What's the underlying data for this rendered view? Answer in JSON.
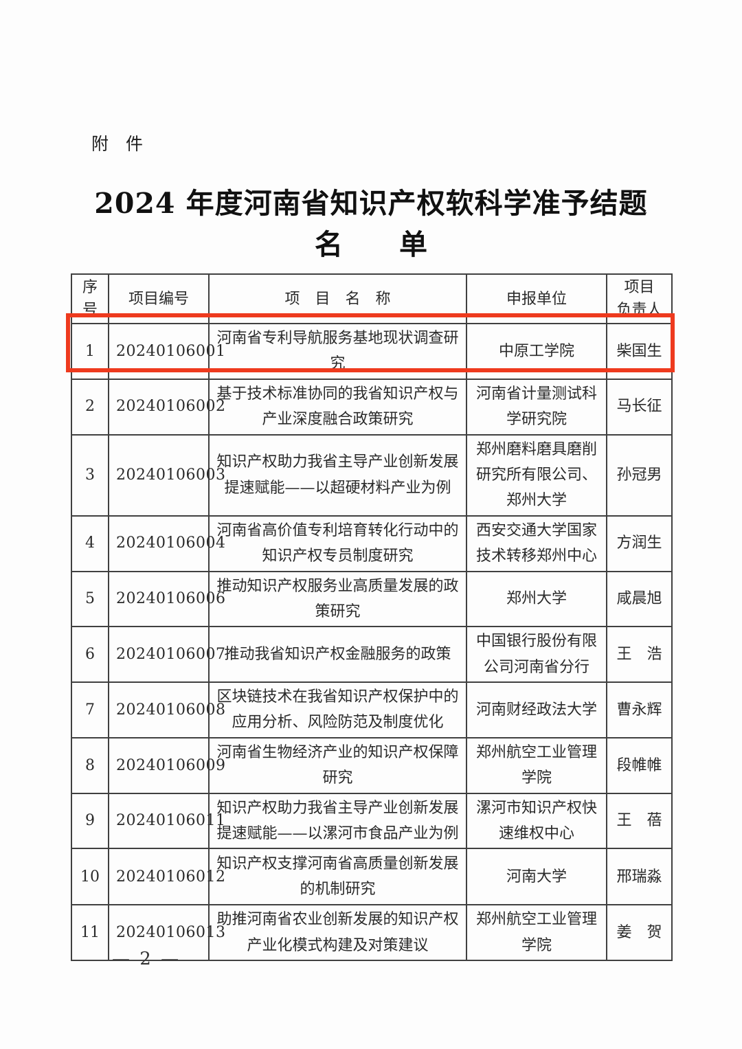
{
  "document": {
    "attachment_label": "附　件",
    "title_line1": "2024 年度河南省知识产权软科学准予结题",
    "title_line2": "名　　单",
    "page_number": "— 2 —",
    "highlight_color": "#ee3a1e"
  },
  "table": {
    "headers": {
      "no": "序\n号",
      "code": "项目编号",
      "name": "项　目　名　称",
      "org": "申报单位",
      "leader": "项目\n负责人"
    },
    "rows": [
      {
        "no": "1",
        "code": "20240106001",
        "name": "河南省专利导航服务基地现状调查研究",
        "org": "中原工学院",
        "leader": "柴国生",
        "highlighted": true
      },
      {
        "no": "2",
        "code": "20240106002",
        "name": "基于技术标准协同的我省知识产权与产业深度融合政策研究",
        "org": "河南省计量测试科学研究院",
        "leader": "马长征",
        "highlighted": false
      },
      {
        "no": "3",
        "code": "20240106003",
        "name": "知识产权助力我省主导产业创新发展提速赋能——以超硬材料产业为例",
        "org": "郑州磨料磨具磨削研究所有限公司、郑州大学",
        "leader": "孙冠男",
        "highlighted": false
      },
      {
        "no": "4",
        "code": "20240106004",
        "name": "河南省高价值专利培育转化行动中的知识产权专员制度研究",
        "org": "西安交通大学国家技术转移郑州中心",
        "leader": "方润生",
        "highlighted": false
      },
      {
        "no": "5",
        "code": "20240106006",
        "name": "推动知识产权服务业高质量发展的政策研究",
        "org": "郑州大学",
        "leader": "咸晨旭",
        "highlighted": false
      },
      {
        "no": "6",
        "code": "20240106007",
        "name": "推动我省知识产权金融服务的政策",
        "org": "中国银行股份有限公司河南省分行",
        "leader": "王　浩",
        "highlighted": false
      },
      {
        "no": "7",
        "code": "20240106008",
        "name": "区块链技术在我省知识产权保护中的应用分析、风险防范及制度优化",
        "org": "河南财经政法大学",
        "leader": "曹永辉",
        "highlighted": false
      },
      {
        "no": "8",
        "code": "20240106009",
        "name": "河南省生物经济产业的知识产权保障研究",
        "org": "郑州航空工业管理学院",
        "leader": "段帷帷",
        "highlighted": false
      },
      {
        "no": "9",
        "code": "20240106011",
        "name": "知识产权助力我省主导产业创新发展提速赋能——以漯河市食品产业为例",
        "org": "漯河市知识产权快速维权中心",
        "leader": "王　蓓",
        "highlighted": false
      },
      {
        "no": "10",
        "code": "20240106012",
        "name": "知识产权支撑河南省高质量创新发展的机制研究",
        "org": "河南大学",
        "leader": "邢瑞淼",
        "highlighted": false
      },
      {
        "no": "11",
        "code": "20240106013",
        "name": "助推河南省农业创新发展的知识产权产业化模式构建及对策建议",
        "org": "郑州航空工业管理学院",
        "leader": "姜　贺",
        "highlighted": false
      }
    ]
  }
}
